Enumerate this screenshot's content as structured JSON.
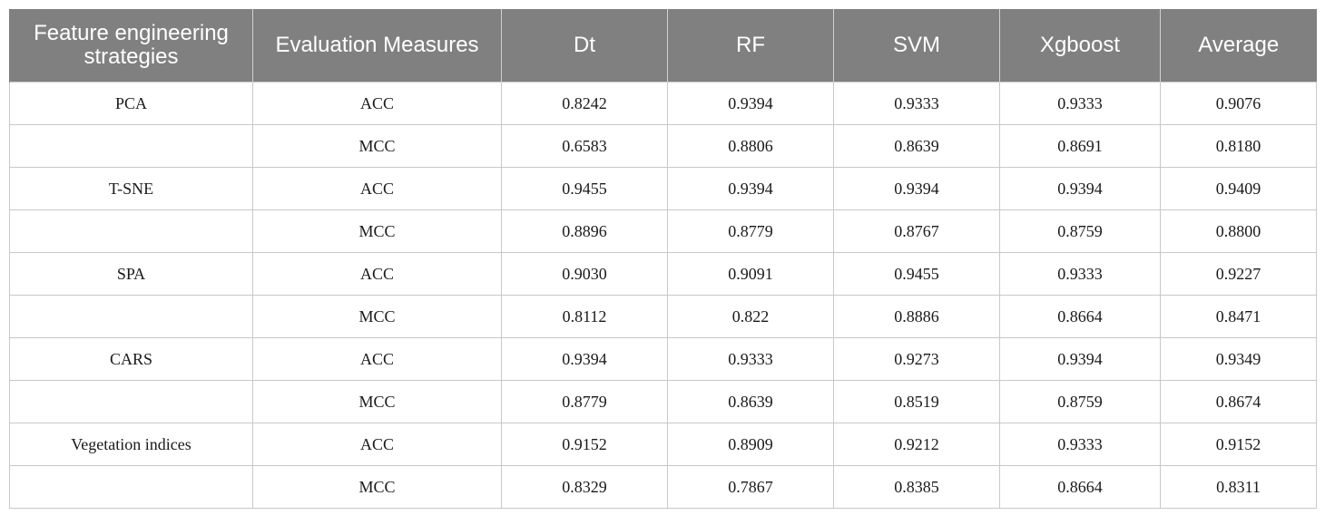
{
  "table": {
    "headers": [
      "Feature engineering strategies",
      "Evaluation Measures",
      "Dt",
      "RF",
      "SVM",
      "Xgboost",
      "Average"
    ],
    "rows": [
      [
        "PCA",
        "ACC",
        "0.8242",
        "0.9394",
        "0.9333",
        "0.9333",
        "0.9076"
      ],
      [
        "",
        "MCC",
        "0.6583",
        "0.8806",
        "0.8639",
        "0.8691",
        "0.8180"
      ],
      [
        "T-SNE",
        "ACC",
        "0.9455",
        "0.9394",
        "0.9394",
        "0.9394",
        "0.9409"
      ],
      [
        "",
        "MCC",
        "0.8896",
        "0.8779",
        "0.8767",
        "0.8759",
        "0.8800"
      ],
      [
        "SPA",
        "ACC",
        "0.9030",
        "0.9091",
        "0.9455",
        "0.9333",
        "0.9227"
      ],
      [
        "",
        "MCC",
        "0.8112",
        "0.822",
        "0.8886",
        "0.8664",
        "0.8471"
      ],
      [
        "CARS",
        "ACC",
        "0.9394",
        "0.9333",
        "0.9273",
        "0.9394",
        "0.9349"
      ],
      [
        "",
        "MCC",
        "0.8779",
        "0.8639",
        "0.8519",
        "0.8759",
        "0.8674"
      ],
      [
        "Vegetation indices",
        "ACC",
        "0.9152",
        "0.8909",
        "0.9212",
        "0.9333",
        "0.9152"
      ],
      [
        "",
        "MCC",
        "0.8329",
        "0.7867",
        "0.8385",
        "0.8664",
        "0.8311"
      ]
    ]
  },
  "colors": {
    "header_background": "#808080",
    "header_text": "#ffffff",
    "grid_line": "#c8c8c8"
  }
}
